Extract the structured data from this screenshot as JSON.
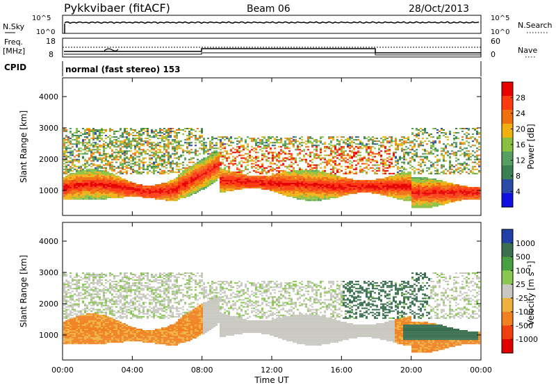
{
  "header": {
    "station": "Pykkvibaer (fitACF)",
    "beam": "Beam 06",
    "date": "28/Oct/2013"
  },
  "status": {
    "nsky_label": "N.Sky",
    "nsearch_label": "N.Search",
    "freq_label_1": "Freq.",
    "freq_label_2": "[MHz]",
    "nave_label": "Nave",
    "cpid_label": "CPID",
    "cpid_text": "normal (fast stereo) 153",
    "noise_ticks_left": [
      "10^5",
      "10^0"
    ],
    "noise_ticks_right": [
      "10^5",
      "10^0"
    ],
    "freq_ticks": [
      "18",
      "8"
    ],
    "nave_ticks": [
      "60",
      "0"
    ]
  },
  "colors": {
    "power": [
      "#1010e0",
      "#2a4aa8",
      "#3a8050",
      "#55a060",
      "#88c040",
      "#f0b010",
      "#f07010",
      "#ff3a10",
      "#e80000"
    ],
    "velocity": [
      "#2040a8",
      "#3a7050",
      "#48a040",
      "#88c850",
      "#c8c8c0",
      "#f0b040",
      "#f08020",
      "#f04010",
      "#e00000"
    ]
  },
  "chart_data": [
    {
      "type": "heatmap",
      "title": "Power",
      "xlabel": "Time UT",
      "ylabel": "Slant Range [km]",
      "xticks": [
        "00:00",
        "04:00",
        "08:00",
        "12:00",
        "16:00",
        "20:00",
        "00:00"
      ],
      "yticks": [
        "1000",
        "2000",
        "3000",
        "4000"
      ],
      "ylim": [
        200,
        4600
      ],
      "colorbar_label": "Power [dB]",
      "colorbar_ticks": [
        "4",
        "8",
        "12",
        "16",
        "20",
        "24",
        "28"
      ]
    },
    {
      "type": "heatmap",
      "title": "Velocity",
      "xlabel": "Time UT",
      "ylabel": "Slant Range [km]",
      "xticks": [
        "00:00",
        "04:00",
        "08:00",
        "12:00",
        "16:00",
        "20:00",
        "00:00"
      ],
      "yticks": [
        "1000",
        "2000",
        "3000",
        "4000"
      ],
      "ylim": [
        200,
        4600
      ],
      "colorbar_label": "Velocity [m s⁻¹]",
      "colorbar_ticks": [
        "1000",
        "500",
        "100",
        "25",
        "-25",
        "-100",
        "-500",
        "-1000"
      ]
    }
  ]
}
